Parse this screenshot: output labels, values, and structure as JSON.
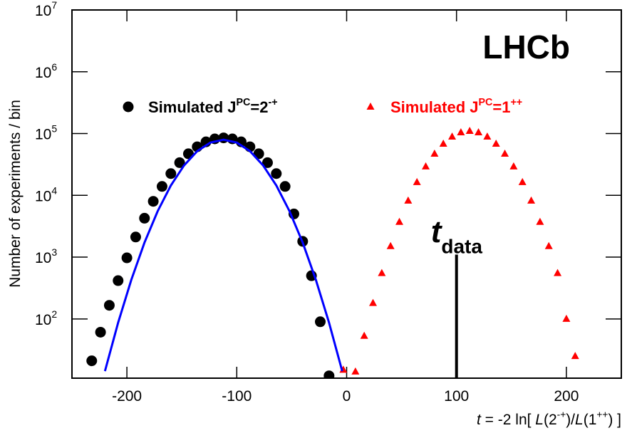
{
  "chart_data": {
    "type": "scatter",
    "title": "LHCb",
    "y_label": "Number of experiments / bin",
    "x_label_parts": [
      [
        "t",
        "i"
      ],
      [
        " = -2 ln[ ",
        ""
      ],
      [
        "L",
        "i"
      ],
      [
        "(2",
        ""
      ],
      [
        "-+",
        "sup"
      ],
      [
        ")/",
        ""
      ],
      [
        "L",
        "i"
      ],
      [
        "(1",
        ""
      ],
      [
        "++",
        "sup"
      ],
      [
        ") ]",
        ""
      ]
    ],
    "xlim": [
      -250,
      250
    ],
    "ylim": [
      11,
      10000000
    ],
    "log_y": true,
    "xticks": [
      -200,
      -100,
      0,
      100,
      200
    ],
    "yticks": [
      {
        "value": 100,
        "label": "10",
        "exponent": "2"
      },
      {
        "value": 1000,
        "label": "10",
        "exponent": "3"
      },
      {
        "value": 10000,
        "label": "10",
        "exponent": "4"
      },
      {
        "value": 100000,
        "label": "10",
        "exponent": "5"
      },
      {
        "value": 1000000,
        "label": "10",
        "exponent": "6"
      },
      {
        "value": 10000000,
        "label": "10",
        "exponent": "7"
      }
    ],
    "series": [
      {
        "name_parts": [
          [
            "Simulated J",
            ""
          ],
          [
            "PC",
            "sup"
          ],
          [
            "=2",
            ""
          ],
          [
            "-+",
            "sup"
          ]
        ],
        "color": "#000000",
        "marker": "circle",
        "x": [
          -232,
          -224,
          -216,
          -208,
          -200,
          -192,
          -184,
          -176,
          -168,
          -160,
          -152,
          -144,
          -136,
          -128,
          -120,
          -112,
          -104,
          -96,
          -88,
          -80,
          -72,
          -64,
          -56,
          -48,
          -40,
          -32,
          -24,
          -16
        ],
        "values": [
          21,
          61,
          166,
          417,
          975,
          2118,
          4266,
          8000,
          13930,
          22490,
          33800,
          47100,
          61100,
          73450,
          82000,
          85100,
          82000,
          73450,
          61100,
          47100,
          33800,
          22490,
          13930,
          5000,
          1800,
          500,
          90,
          12
        ]
      },
      {
        "name_parts": [
          [
            "Simulated J",
            ""
          ],
          [
            "PC",
            "sup"
          ],
          [
            "=1",
            ""
          ],
          [
            "++",
            "sup"
          ]
        ],
        "color": "#ff0000",
        "marker": "triangle",
        "x": [
          -3,
          8,
          16,
          24,
          32,
          40,
          48,
          56,
          64,
          72,
          80,
          88,
          96,
          104,
          112,
          120,
          128,
          136,
          144,
          152,
          160,
          168,
          176,
          184,
          192,
          200,
          208
        ],
        "values": [
          15,
          14,
          53,
          180,
          550,
          1500,
          3700,
          8180,
          16300,
          29200,
          47000,
          68100,
          88700,
          104000,
          110000,
          104000,
          88700,
          68100,
          47000,
          29200,
          16300,
          8180,
          3700,
          1500,
          550,
          100,
          25
        ]
      },
      {
        "type": "line",
        "color": "#0000ff",
        "x": [
          -220,
          -208,
          -196,
          -184,
          -172,
          -160,
          -148,
          -136,
          -124,
          -112,
          -100,
          -88,
          -76,
          -64,
          -52,
          -40,
          -28,
          -16,
          -4
        ],
        "values": [
          14.3,
          87,
          430,
          1720,
          5550,
          14450,
          30500,
          51900,
          71400,
          79400,
          71400,
          51900,
          30500,
          14450,
          5550,
          1720,
          430,
          87,
          14.3
        ]
      }
    ],
    "annotation": {
      "parts": [
        [
          "t",
          "i"
        ],
        [
          "data",
          "sub"
        ]
      ],
      "x": 100,
      "y": 1100
    }
  }
}
